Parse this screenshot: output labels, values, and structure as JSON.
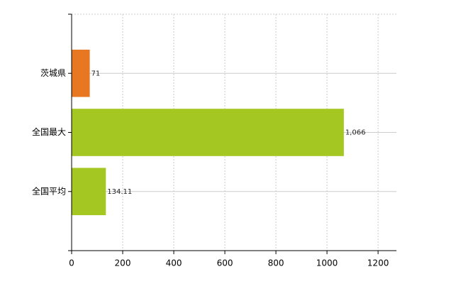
{
  "chart_data": {
    "type": "bar",
    "orientation": "horizontal",
    "categories": [
      "茨城県",
      "全国最大",
      "全国平均"
    ],
    "values": [
      71,
      1066,
      134.11
    ],
    "value_labels": [
      "71",
      "1,066",
      "134.11"
    ],
    "colors": [
      "#e87722",
      "#a5c721",
      "#a5c721"
    ],
    "xlim": [
      0,
      1272
    ],
    "xticks": [
      0,
      200,
      400,
      600,
      800,
      1000,
      1200
    ],
    "grid": true
  }
}
